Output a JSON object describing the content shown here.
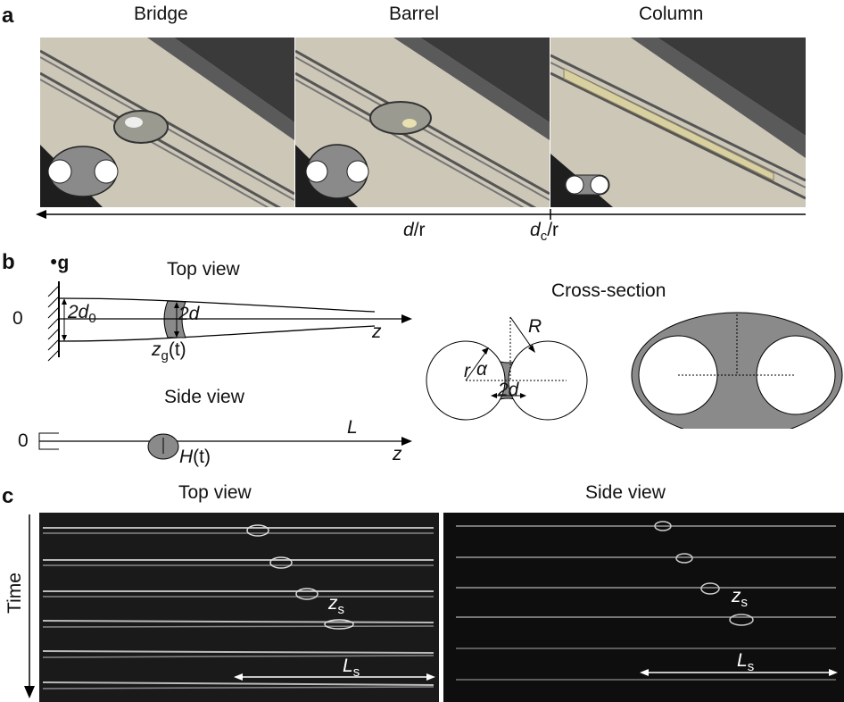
{
  "panel_a": {
    "letter": "a",
    "titles": [
      "Bridge",
      "Barrel",
      "Column"
    ],
    "axis_d": "d",
    "axis_r": "/r",
    "axis_dc_d": "d",
    "axis_dc_c": "c",
    "axis_dc_r": "/r"
  },
  "panel_b": {
    "letter": "b",
    "gravity": "g",
    "top_view": "Top view",
    "side_view": "Side view",
    "cross_section": "Cross-section",
    "zero": "0",
    "twod0_main": "2d",
    "twod0_sub": "0",
    "twod": "2d",
    "zg_main": "z",
    "zg_sub": "g",
    "zg_arg": "(t)",
    "z": "z",
    "L": "L",
    "Ht_main": "H",
    "Ht_arg": "(t)",
    "R": "R",
    "r": "r",
    "alpha": "α",
    "cs_twod": "2d"
  },
  "panel_c": {
    "letter": "c",
    "top_view": "Top view",
    "side_view": "Side view",
    "time": "Time",
    "zs_main": "z",
    "zs_sub": "s",
    "Ls_main": "L",
    "Ls_sub": "s"
  },
  "colors": {
    "photo_bg": "#c9c3b4",
    "diagram_gray": "#8a8a8a",
    "dark_bg": "#1a1a1a"
  }
}
